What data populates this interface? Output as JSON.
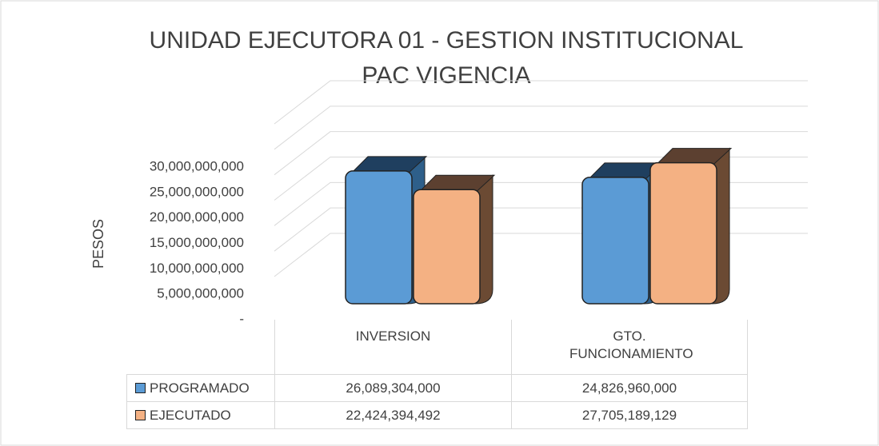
{
  "chart_data": {
    "type": "bar3d",
    "title": "UNIDAD EJECUTORA 01 - GESTION INSTITUCIONAL",
    "subtitle": "PAC VIGENCIA",
    "ylabel": "PESOS",
    "categories": [
      "INVERSION",
      "GTO. FUNCIONAMIENTO"
    ],
    "series": [
      {
        "name": "PROGRAMADO",
        "color": "#5b9bd5",
        "values": [
          26089304000,
          24826960000
        ],
        "value_labels": [
          "26,089,304,000",
          "24,826,960,000"
        ]
      },
      {
        "name": "EJECUTADO",
        "color": "#f4b183",
        "values": [
          22424394492,
          27705189129
        ],
        "value_labels": [
          "22,424,394,492",
          "27,705,189,129"
        ]
      }
    ],
    "ylim": [
      0,
      30000000000
    ],
    "yticks": [
      {
        "value": 0,
        "label": "-"
      },
      {
        "value": 5000000000,
        "label": "5,000,000,000"
      },
      {
        "value": 10000000000,
        "label": "10,000,000,000"
      },
      {
        "value": 15000000000,
        "label": "15,000,000,000"
      },
      {
        "value": 20000000000,
        "label": "20,000,000,000"
      },
      {
        "value": 25000000000,
        "label": "25,000,000,000"
      },
      {
        "value": 30000000000,
        "label": "30,000,000,000"
      }
    ],
    "grid": true,
    "data_table": true
  }
}
